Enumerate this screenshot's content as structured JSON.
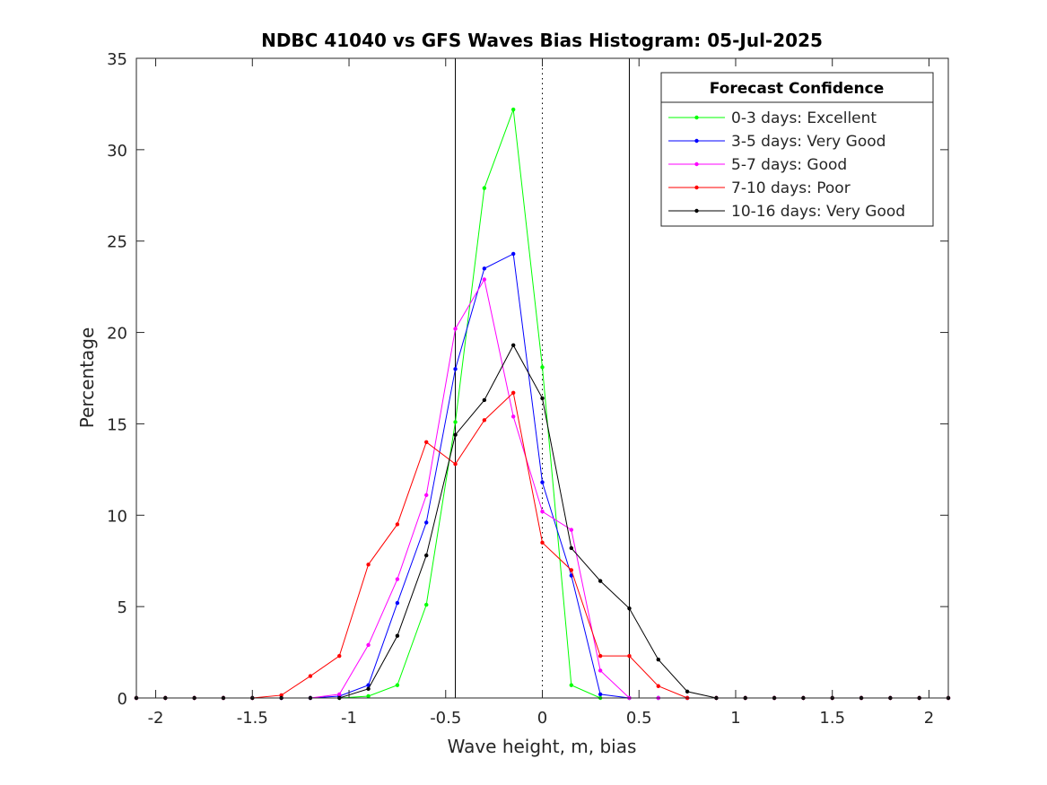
{
  "chart_data": {
    "type": "line",
    "title": "NDBC 41040 vs GFS Waves Bias Histogram: 05-Jul-2025",
    "xlabel": "Wave height, m, bias",
    "ylabel": "Percentage",
    "xlim": [
      -2.1,
      2.1
    ],
    "ylim": [
      0,
      35
    ],
    "xticks": [
      -2,
      -1.5,
      -1,
      -0.5,
      0,
      0.5,
      1,
      1.5,
      2
    ],
    "xtick_labels": [
      "-2",
      "-1.5",
      "-1",
      "-0.5",
      "0",
      "0.5",
      "1",
      "1.5",
      "2"
    ],
    "yticks": [
      0,
      5,
      10,
      15,
      20,
      25,
      30,
      35
    ],
    "ytick_labels": [
      "0",
      "5",
      "10",
      "15",
      "20",
      "25",
      "30",
      "35"
    ],
    "grid": false,
    "legend": {
      "title": "Forecast Confidence",
      "location": "top-right"
    },
    "reference_lines": [
      {
        "x": -0.45,
        "style": "solid",
        "color": "#000000"
      },
      {
        "x": 0,
        "style": "dotted",
        "color": "#000000"
      },
      {
        "x": 0.45,
        "style": "solid",
        "color": "#000000"
      }
    ],
    "x": [
      -2.1,
      -1.95,
      -1.8,
      -1.65,
      -1.5,
      -1.35,
      -1.2,
      -1.05,
      -0.9,
      -0.75,
      -0.6,
      -0.45,
      -0.3,
      -0.15,
      0,
      0.15,
      0.3,
      0.45,
      0.6,
      0.75,
      0.9,
      1.05,
      1.2,
      1.35,
      1.5,
      1.65,
      1.8,
      1.95,
      2.1
    ],
    "series": [
      {
        "name": "0-3 days: Excellent",
        "color": "#00ff00",
        "values": [
          0,
          0,
          0,
          0,
          0,
          0,
          0,
          0,
          0.1,
          0.7,
          5.1,
          15.1,
          27.9,
          32.2,
          18.1,
          0.7,
          0,
          0,
          0,
          0,
          0,
          0,
          0,
          0,
          0,
          0,
          0,
          0,
          0
        ]
      },
      {
        "name": "3-5 days: Very Good",
        "color": "#0000ff",
        "values": [
          0,
          0,
          0,
          0,
          0,
          0,
          0,
          0.1,
          0.7,
          5.2,
          9.6,
          18.0,
          23.5,
          24.3,
          11.8,
          6.7,
          0.2,
          0,
          0,
          0,
          0,
          0,
          0,
          0,
          0,
          0,
          0,
          0,
          0
        ]
      },
      {
        "name": "5-7 days: Good",
        "color": "#ff00ff",
        "values": [
          0,
          0,
          0,
          0,
          0,
          0,
          0,
          0.2,
          2.9,
          6.5,
          11.1,
          20.2,
          22.9,
          15.4,
          10.2,
          9.2,
          1.5,
          0,
          0,
          0,
          0,
          0,
          0,
          0,
          0,
          0,
          0,
          0,
          0
        ]
      },
      {
        "name": "7-10 days: Poor",
        "color": "#ff0000",
        "values": [
          0,
          0,
          0,
          0,
          0,
          0.15,
          1.2,
          2.3,
          7.3,
          9.5,
          14.0,
          12.8,
          15.2,
          16.7,
          8.5,
          7.0,
          2.3,
          2.3,
          0.65,
          0,
          0,
          0,
          0,
          0,
          0,
          0,
          0,
          0,
          0
        ]
      },
      {
        "name": "10-16 days: Very Good",
        "color": "#000000",
        "values": [
          0,
          0,
          0,
          0,
          0,
          0,
          0,
          0,
          0.5,
          3.4,
          7.8,
          14.4,
          16.3,
          19.3,
          16.4,
          8.2,
          6.4,
          4.9,
          2.1,
          0.35,
          0,
          0,
          0,
          0,
          0,
          0,
          0,
          0,
          0
        ]
      }
    ]
  }
}
